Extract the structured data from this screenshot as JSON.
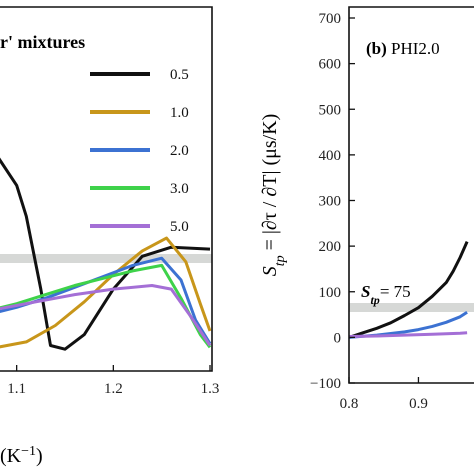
{
  "chart_data": [
    {
      "panel": "a",
      "type": "line",
      "legend_title": "r' mixtures",
      "legend_position": "top-right",
      "xlabel_visible": "(K−1)",
      "xticks": [
        "1.1",
        "1.2",
        "1.3"
      ],
      "xlim": [
        1.0,
        1.3
      ],
      "reference_band": true,
      "series": [
        {
          "name": "0.5",
          "color": "#111111",
          "x": [
            1.0,
            1.02,
            1.05,
            1.08,
            1.1,
            1.11,
            1.125,
            1.135,
            1.15,
            1.17,
            1.2,
            1.23,
            1.26,
            1.3
          ],
          "y": [
            1.0,
            0.78,
            0.6,
            0.38,
            0.22,
            0.05,
            -0.35,
            -0.66,
            -0.68,
            -0.6,
            -0.35,
            -0.17,
            -0.12,
            -0.13
          ]
        },
        {
          "name": "1.0",
          "color": "#c8961a",
          "x": [
            1.0,
            1.02,
            1.05,
            1.08,
            1.11,
            1.14,
            1.17,
            1.2,
            1.23,
            1.255,
            1.275,
            1.29,
            1.3
          ],
          "y": [
            -0.58,
            -0.6,
            -0.65,
            -0.67,
            -0.64,
            -0.55,
            -0.42,
            -0.27,
            -0.14,
            -0.07,
            -0.2,
            -0.43,
            -0.58
          ]
        },
        {
          "name": "2.0",
          "color": "#3c72d2",
          "x": [
            1.0,
            1.03,
            1.07,
            1.1,
            1.13,
            1.16,
            1.19,
            1.22,
            1.25,
            1.27,
            1.285,
            1.3
          ],
          "y": [
            -0.57,
            -0.54,
            -0.49,
            -0.45,
            -0.4,
            -0.34,
            -0.28,
            -0.22,
            -0.18,
            -0.3,
            -0.52,
            -0.65
          ]
        },
        {
          "name": "3.0",
          "color": "#3ed24a",
          "x": [
            1.0,
            1.03,
            1.07,
            1.1,
            1.13,
            1.16,
            1.19,
            1.22,
            1.25,
            1.27,
            1.29,
            1.3
          ],
          "y": [
            -0.56,
            -0.52,
            -0.47,
            -0.43,
            -0.38,
            -0.33,
            -0.29,
            -0.25,
            -0.22,
            -0.4,
            -0.6,
            -0.67
          ]
        },
        {
          "name": "5.0",
          "color": "#a46fd6",
          "x": [
            1.0,
            1.04,
            1.08,
            1.12,
            1.16,
            1.2,
            1.24,
            1.26,
            1.28,
            1.3
          ],
          "y": [
            -0.55,
            -0.5,
            -0.46,
            -0.42,
            -0.38,
            -0.35,
            -0.33,
            -0.35,
            -0.5,
            -0.66
          ]
        }
      ]
    },
    {
      "panel": "b",
      "type": "line",
      "title": "(b)",
      "title_rest": "PHI2.0",
      "ylabel": "S_tp = |∂τ / ∂T| (μs/K)",
      "ylim": [
        -100,
        700
      ],
      "yticks": [
        "700",
        "600",
        "500",
        "400",
        "300",
        "200",
        "100",
        "0",
        "−100"
      ],
      "xlim": [
        0.8,
        0.98
      ],
      "xticks": [
        "0.8",
        "0.9"
      ],
      "reference_band_value": 75,
      "annotation": "S_tp = 75",
      "series": [
        {
          "color": "#111111",
          "x": [
            0.8,
            0.82,
            0.84,
            0.86,
            0.88,
            0.9,
            0.92,
            0.94,
            0.95,
            0.96,
            0.97
          ],
          "y": [
            0,
            10,
            20,
            32,
            48,
            65,
            90,
            120,
            145,
            175,
            210
          ]
        },
        {
          "color": "#3c72d2",
          "x": [
            0.8,
            0.84,
            0.88,
            0.9,
            0.92,
            0.94,
            0.96,
            0.97
          ],
          "y": [
            0,
            5,
            12,
            17,
            24,
            33,
            45,
            55
          ]
        },
        {
          "color": "#a46fd6",
          "x": [
            0.8,
            0.84,
            0.88,
            0.92,
            0.96,
            0.97
          ],
          "y": [
            2,
            3,
            5,
            7,
            9,
            10
          ]
        }
      ]
    }
  ],
  "axis_texts": {
    "left_xlabel": "(K",
    "left_xlabel_sup": "−1",
    "left_xlabel_close": ")",
    "ylabel_S": "S",
    "ylabel_sub": "tp",
    "ylabel_rest": " = |∂τ / ∂T| (μs/K)",
    "annot_S": "S",
    "annot_sub": "tp",
    "annot_rest": "= 75",
    "title_b": "(b)",
    "title_b_rest": " PHI2.0"
  }
}
